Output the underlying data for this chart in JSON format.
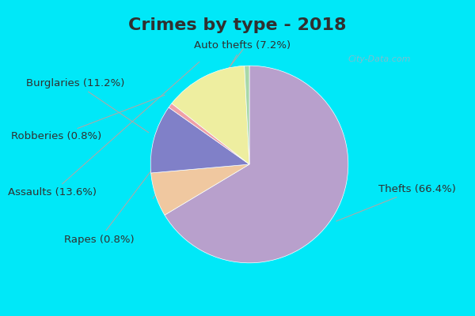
{
  "title": "Crimes by type - 2018",
  "labels": [
    "Thefts",
    "Auto thefts",
    "Burglaries",
    "Robberies",
    "Assaults",
    "Rapes"
  ],
  "values": [
    66.4,
    7.2,
    11.2,
    0.8,
    13.6,
    0.8
  ],
  "colors": [
    "#b8a0cc",
    "#f0c8a0",
    "#8080c8",
    "#f0a0a8",
    "#eeeea0",
    "#a8d8a8"
  ],
  "startangle": 90,
  "cyan_color": "#00e8f8",
  "bg_color": "#d8ede0",
  "title_fontsize": 16,
  "label_fontsize": 9.5,
  "title_color": "#303030",
  "label_color": "#303030",
  "watermark": "City-Data.com",
  "watermark_color": "#90b8c8"
}
